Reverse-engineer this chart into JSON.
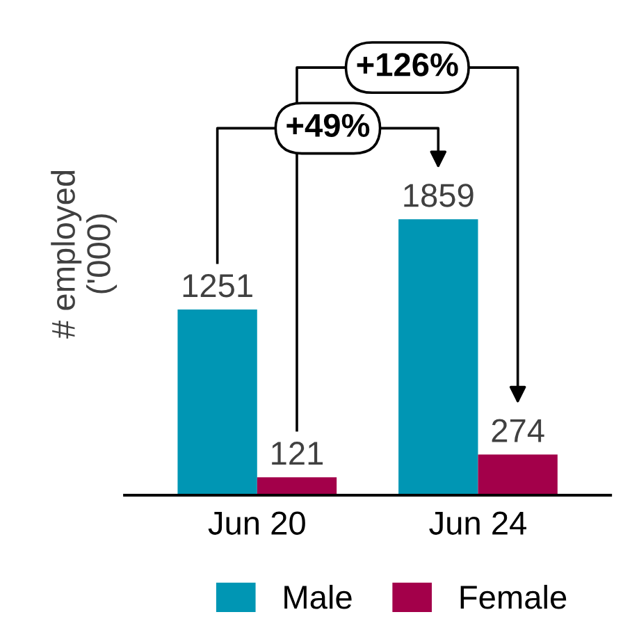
{
  "chart_data": {
    "type": "bar",
    "ylabel": "# employed\n('000)",
    "categories": [
      "Jun 20",
      "Jun 24"
    ],
    "series": [
      {
        "name": "Male",
        "color": "#0096b4",
        "values": [
          1251,
          1859
        ]
      },
      {
        "name": "Female",
        "color": "#a3004a",
        "values": [
          121,
          274
        ]
      }
    ],
    "data_labels": true,
    "legend": "bottom",
    "grid": false,
    "annotations": [
      "+49%",
      "+126%"
    ]
  }
}
